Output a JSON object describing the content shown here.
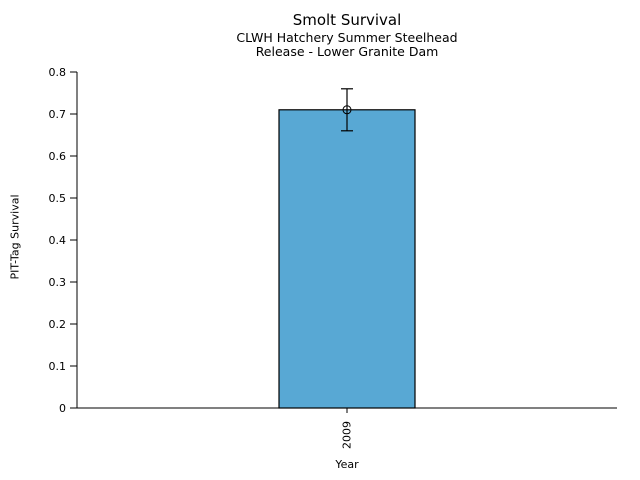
{
  "chart_data": {
    "type": "bar",
    "title": "Smolt Survival",
    "subtitle": [
      "CLWH Hatchery Summer Steelhead",
      "Release - Lower Granite Dam"
    ],
    "xlabel": "Year",
    "ylabel": "PIT-Tag Survival",
    "categories": [
      "2009"
    ],
    "values": [
      0.71
    ],
    "error_low": [
      0.66
    ],
    "error_high": [
      0.76
    ],
    "ylim": [
      0,
      0.8
    ],
    "yticks": [
      0,
      0.1,
      0.2,
      0.3,
      0.4,
      0.5,
      0.6,
      0.7,
      0.8
    ],
    "ytick_labels": [
      "0",
      "0.1",
      "0.2",
      "0.3",
      "0.4",
      "0.5",
      "0.6",
      "0.7",
      "0.8"
    ],
    "xtick_rotation": 90,
    "grid": false,
    "legend": null,
    "marker": "open-circle",
    "colors": {
      "bar_fill": "#58A8D4",
      "bar_edge": "#000000",
      "error_bar": "#000000",
      "axis": "#000000",
      "text": "#000000",
      "background": "#FFFFFF"
    }
  }
}
